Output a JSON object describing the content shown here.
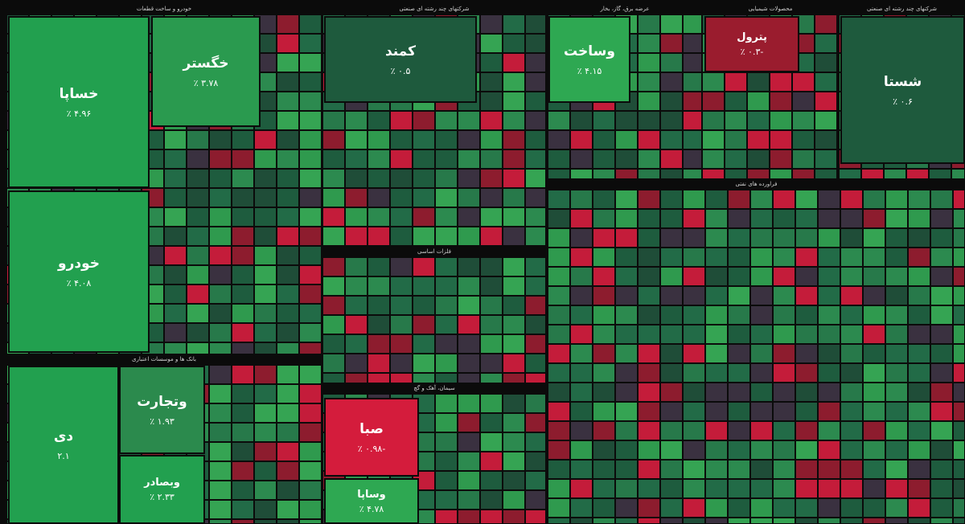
{
  "sectors": [
    {
      "title": "خودرو و ساخت قطعات"
    },
    {
      "title": "بانک ها و موسسات اعتباری"
    },
    {
      "title": "شرکتهای چند رشته ای صنعتی"
    },
    {
      "title": "فلزات اساسی"
    },
    {
      "title": "سیمان، آهک و گچ"
    },
    {
      "title": "عرضه برق، گاز، بخار"
    },
    {
      "title": "محصولات شیمیایی"
    },
    {
      "title": "شرکتهای چند رشته ای صنعتی"
    },
    {
      "title": "فراورده های نفتی"
    }
  ],
  "tiles": [
    {
      "symbol": "خساپا",
      "change": "۴.۹۶ ٪"
    },
    {
      "symbol": "خودرو",
      "change": "۴.۰۸ ٪"
    },
    {
      "symbol": "خگستر",
      "change": "۳.۷۸ ٪"
    },
    {
      "symbol": "دی",
      "change": "۲.۱"
    },
    {
      "symbol": "وبصادر",
      "change": "۲.۳۳ ٪"
    },
    {
      "symbol": "وتجارت",
      "change": "۱.۹۳ ٪"
    },
    {
      "symbol": "کمند",
      "change": "۰.۵ ٪"
    },
    {
      "symbol": "شستا",
      "change": "۰.۶ ٪"
    },
    {
      "symbol": "پترول",
      "change": "-۰.۳ ٪"
    },
    {
      "symbol": "وساخت",
      "change": "۴.۱۵ ٪"
    },
    {
      "symbol": "صبا",
      "change": "-۰.۹۸ ٪"
    },
    {
      "symbol": "وساپا",
      "change": "۴.۷۸ ٪"
    }
  ]
}
